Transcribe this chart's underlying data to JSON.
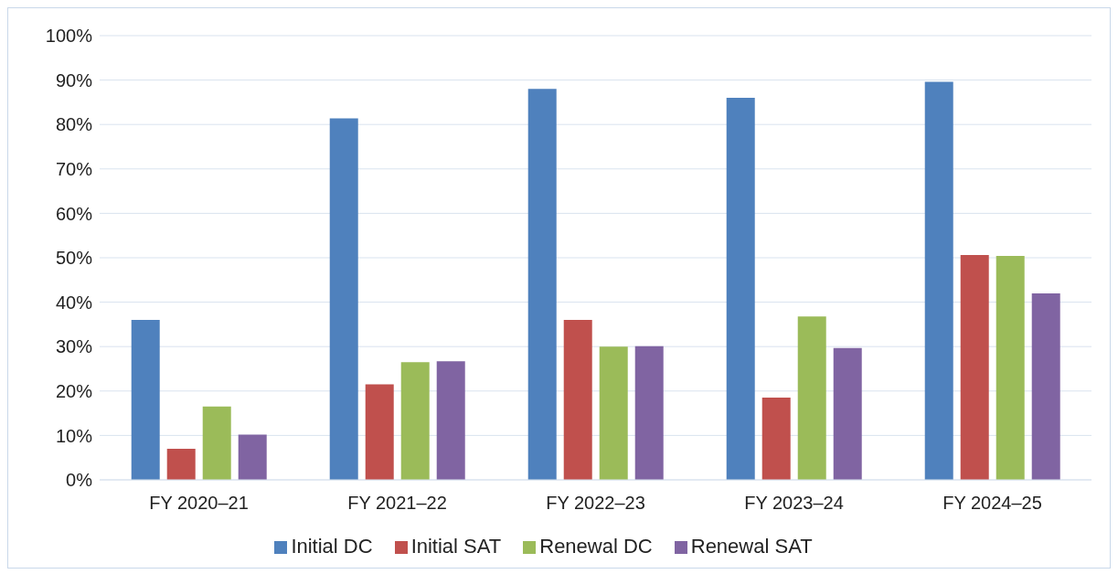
{
  "chart_data": {
    "type": "bar",
    "categories": [
      "FY 2020–21",
      "FY 2021–22",
      "FY 2022–23",
      "FY 2023–24",
      "FY 2024–25"
    ],
    "series": [
      {
        "name": "Initial DC",
        "color": "#4f81bd",
        "values": [
          36,
          81.4,
          88,
          86,
          89.6
        ]
      },
      {
        "name": "Initial SAT",
        "color": "#c0504d",
        "values": [
          7,
          21.5,
          36,
          18.5,
          50.6
        ]
      },
      {
        "name": "Renewal DC",
        "color": "#9bbb59",
        "values": [
          16.5,
          26.5,
          30,
          36.8,
          50.4
        ]
      },
      {
        "name": "Renewal SAT",
        "color": "#8064a2",
        "values": [
          10.2,
          26.7,
          30.1,
          29.7,
          42
        ]
      }
    ],
    "ylim": [
      0,
      100
    ],
    "yticks": [
      {
        "value": 0,
        "label": "0%"
      },
      {
        "value": 10,
        "label": "10%"
      },
      {
        "value": 20,
        "label": "20%"
      },
      {
        "value": 30,
        "label": "30%"
      },
      {
        "value": 40,
        "label": "40%"
      },
      {
        "value": 50,
        "label": "50%"
      },
      {
        "value": 60,
        "label": "60%"
      },
      {
        "value": 70,
        "label": "70%"
      },
      {
        "value": 80,
        "label": "80%"
      },
      {
        "value": 90,
        "label": "90%"
      },
      {
        "value": 100,
        "label": "100%"
      }
    ],
    "grid": "y",
    "legend": "bottom"
  }
}
